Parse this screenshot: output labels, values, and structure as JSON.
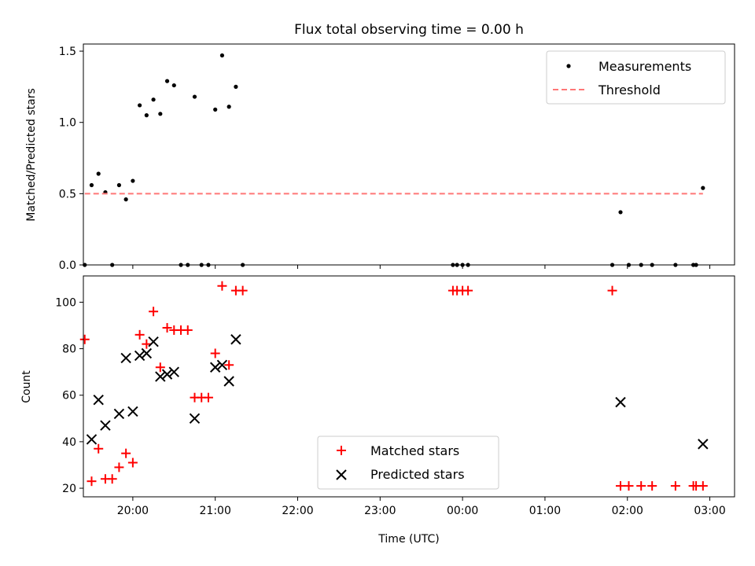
{
  "chart_data": [
    {
      "type": "scatter",
      "title": "Flux total observing time = 0.00 h",
      "ylabel": "Matched/Predicted stars",
      "xlabel": "",
      "xlim": [
        "19:24",
        "03:18"
      ],
      "ylim": [
        0,
        1.55
      ],
      "yticks": [
        0.0,
        0.5,
        1.0,
        1.5
      ],
      "ytick_labels": [
        "0.0",
        "0.5",
        "1.0",
        "1.5"
      ],
      "xticks": [
        "20:00",
        "21:00",
        "22:00",
        "23:00",
        "00:00",
        "01:00",
        "02:00",
        "03:00"
      ],
      "grid": false,
      "legend_position": "top-right",
      "series": [
        {
          "name": "Measurements",
          "marker": "dot",
          "color": "#000000",
          "points": [
            {
              "x": "19:25",
              "y": 0.0
            },
            {
              "x": "19:30",
              "y": 0.56
            },
            {
              "x": "19:35",
              "y": 0.64
            },
            {
              "x": "19:40",
              "y": 0.51
            },
            {
              "x": "19:45",
              "y": 0.0
            },
            {
              "x": "19:50",
              "y": 0.56
            },
            {
              "x": "19:55",
              "y": 0.46
            },
            {
              "x": "20:00",
              "y": 0.59
            },
            {
              "x": "20:05",
              "y": 1.12
            },
            {
              "x": "20:10",
              "y": 1.05
            },
            {
              "x": "20:15",
              "y": 1.16
            },
            {
              "x": "20:20",
              "y": 1.06
            },
            {
              "x": "20:25",
              "y": 1.29
            },
            {
              "x": "20:30",
              "y": 1.26
            },
            {
              "x": "20:35",
              "y": 0.0
            },
            {
              "x": "20:40",
              "y": 0.0
            },
            {
              "x": "20:45",
              "y": 1.18
            },
            {
              "x": "20:50",
              "y": 0.0
            },
            {
              "x": "20:55",
              "y": 0.0
            },
            {
              "x": "21:00",
              "y": 1.09
            },
            {
              "x": "21:05",
              "y": 1.47
            },
            {
              "x": "21:10",
              "y": 1.11
            },
            {
              "x": "21:15",
              "y": 1.25
            },
            {
              "x": "21:20",
              "y": 0.0
            },
            {
              "x": "23:53",
              "y": 0.0
            },
            {
              "x": "23:56",
              "y": 0.0
            },
            {
              "x": "00:00",
              "y": 0.0
            },
            {
              "x": "00:04",
              "y": 0.0
            },
            {
              "x": "01:49",
              "y": 0.0
            },
            {
              "x": "01:55",
              "y": 0.37
            },
            {
              "x": "02:01",
              "y": 0.0
            },
            {
              "x": "02:10",
              "y": 0.0
            },
            {
              "x": "02:18",
              "y": 0.0
            },
            {
              "x": "02:35",
              "y": 0.0
            },
            {
              "x": "02:48",
              "y": 0.0
            },
            {
              "x": "02:50",
              "y": 0.0
            },
            {
              "x": "02:55",
              "y": 0.54
            }
          ]
        },
        {
          "name": "Threshold",
          "style": "dashed-line",
          "color": "#ff7777",
          "points": [
            {
              "x": "19:25",
              "y": 0.5
            },
            {
              "x": "02:55",
              "y": 0.5
            }
          ]
        }
      ]
    },
    {
      "type": "scatter",
      "title": "",
      "ylabel": "Count",
      "xlabel": "Time (UTC)",
      "xlim": [
        "19:24",
        "03:18"
      ],
      "ylim": [
        16.3,
        111.3
      ],
      "yticks": [
        20,
        40,
        60,
        80,
        100
      ],
      "ytick_labels": [
        "20",
        "40",
        "60",
        "80",
        "100"
      ],
      "xticks": [
        "20:00",
        "21:00",
        "22:00",
        "23:00",
        "00:00",
        "01:00",
        "02:00",
        "03:00"
      ],
      "grid": false,
      "legend_position": "bottom-center",
      "series": [
        {
          "name": "Matched stars",
          "marker": "plus",
          "color": "#ff0000",
          "points": [
            {
              "x": "19:25",
              "y": 84
            },
            {
              "x": "19:30",
              "y": 23
            },
            {
              "x": "19:35",
              "y": 37
            },
            {
              "x": "19:40",
              "y": 24
            },
            {
              "x": "19:45",
              "y": 24
            },
            {
              "x": "19:50",
              "y": 29
            },
            {
              "x": "19:55",
              "y": 35
            },
            {
              "x": "20:00",
              "y": 31
            },
            {
              "x": "20:05",
              "y": 86
            },
            {
              "x": "20:10",
              "y": 82
            },
            {
              "x": "20:15",
              "y": 96
            },
            {
              "x": "20:20",
              "y": 72
            },
            {
              "x": "20:25",
              "y": 89
            },
            {
              "x": "20:30",
              "y": 88
            },
            {
              "x": "20:35",
              "y": 88
            },
            {
              "x": "20:40",
              "y": 88
            },
            {
              "x": "20:45",
              "y": 59
            },
            {
              "x": "20:50",
              "y": 59
            },
            {
              "x": "20:55",
              "y": 59
            },
            {
              "x": "21:00",
              "y": 78
            },
            {
              "x": "21:05",
              "y": 107
            },
            {
              "x": "21:10",
              "y": 73
            },
            {
              "x": "21:15",
              "y": 105
            },
            {
              "x": "21:20",
              "y": 105
            },
            {
              "x": "23:53",
              "y": 105
            },
            {
              "x": "23:56",
              "y": 105
            },
            {
              "x": "00:00",
              "y": 105
            },
            {
              "x": "00:04",
              "y": 105
            },
            {
              "x": "01:49",
              "y": 105
            },
            {
              "x": "01:55",
              "y": 21
            },
            {
              "x": "02:01",
              "y": 21
            },
            {
              "x": "02:10",
              "y": 21
            },
            {
              "x": "02:18",
              "y": 21
            },
            {
              "x": "02:35",
              "y": 21
            },
            {
              "x": "02:48",
              "y": 21
            },
            {
              "x": "02:50",
              "y": 21
            },
            {
              "x": "02:55",
              "y": 21
            }
          ]
        },
        {
          "name": "Predicted stars",
          "marker": "x",
          "color": "#000000",
          "points": [
            {
              "x": "19:30",
              "y": 41
            },
            {
              "x": "19:35",
              "y": 58
            },
            {
              "x": "19:40",
              "y": 47
            },
            {
              "x": "19:50",
              "y": 52
            },
            {
              "x": "19:55",
              "y": 76
            },
            {
              "x": "20:00",
              "y": 53
            },
            {
              "x": "20:05",
              "y": 77
            },
            {
              "x": "20:10",
              "y": 78
            },
            {
              "x": "20:15",
              "y": 83
            },
            {
              "x": "20:20",
              "y": 68
            },
            {
              "x": "20:25",
              "y": 69
            },
            {
              "x": "20:30",
              "y": 70
            },
            {
              "x": "20:45",
              "y": 50
            },
            {
              "x": "21:00",
              "y": 72
            },
            {
              "x": "21:05",
              "y": 73
            },
            {
              "x": "21:10",
              "y": 66
            },
            {
              "x": "21:15",
              "y": 84
            },
            {
              "x": "01:55",
              "y": 57
            },
            {
              "x": "02:55",
              "y": 39
            }
          ]
        }
      ]
    }
  ]
}
